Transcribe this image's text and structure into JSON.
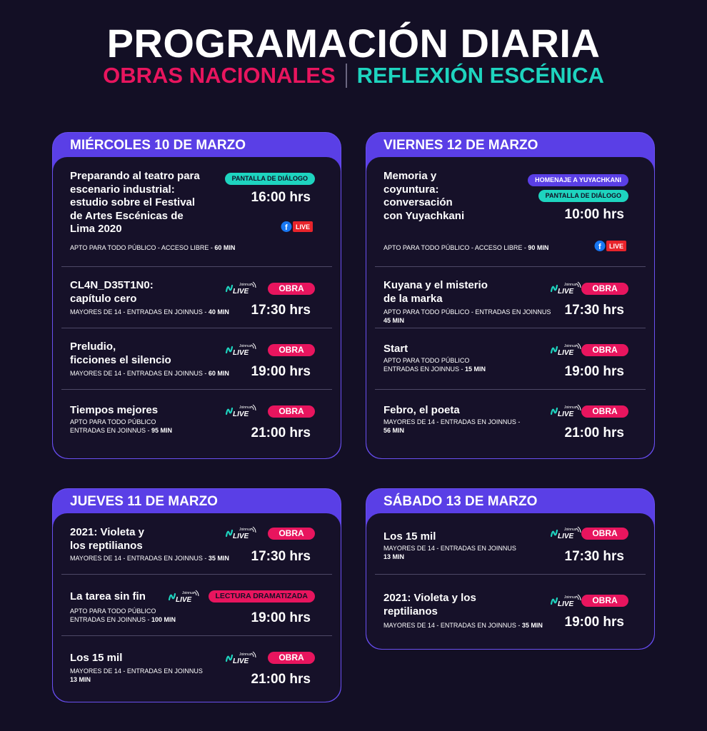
{
  "header": {
    "title": "PROGRAMACIÓN DIARIA",
    "subtitle_left": "OBRAS NACIONALES",
    "subtitle_right": "REFLEXIÓN ESCÉNICA"
  },
  "colors": {
    "background": "#130f25",
    "accent_purple": "#5a3fe6",
    "accent_pink": "#e8155e",
    "accent_teal": "#1ed4bf"
  },
  "icons": [
    "joinnus-live-logo",
    "facebook-live-icon"
  ],
  "days": {
    "wed": {
      "label": "MIÉRCOLES 10 DE MARZO",
      "events": [
        {
          "title": "Preparando al teatro para\nescenario industrial:\nestudio sobre el Festival\nde Artes Escénicas de\nLima 2020",
          "tag": "PANTALLA DE DIÁLOGO",
          "time": "16:00 hrs",
          "info": "APTO PARA TODO PÚBLICO - ACCESO LIBRE - ",
          "duration": "60 MIN",
          "platform": "LIVE"
        },
        {
          "title": "CL4N_D35T1N0:\ncapítulo cero",
          "tag": "OBRA",
          "time": "17:30 hrs",
          "info": "MAYORES DE 14 - ENTRADAS EN JOINNUS - ",
          "duration": "40 MIN",
          "platform": "Joinnus LIVE"
        },
        {
          "title": "Preludio,\nficciones el silencio",
          "tag": "OBRA",
          "time": "19:00 hrs",
          "info": "MAYORES DE 14 - ENTRADAS EN JOINNUS - ",
          "duration": "60 MIN",
          "platform": "Joinnus LIVE"
        },
        {
          "title": "Tiempos mejores",
          "tag": "OBRA",
          "time": "21:00 hrs",
          "info": "APTO PARA TODO PÚBLICO\nENTRADAS EN JOINNUS - ",
          "duration": "95 MIN",
          "platform": "Joinnus LIVE"
        }
      ]
    },
    "thu": {
      "label": "JUEVES 11 DE MARZO",
      "events": [
        {
          "title": "2021: Violeta y\nlos reptilianos",
          "tag": "OBRA",
          "time": "17:30 hrs",
          "info": "MAYORES DE 14 - ENTRADAS EN JOINNUS - ",
          "duration": "35 MIN",
          "platform": "Joinnus LIVE"
        },
        {
          "title": "La tarea sin fin",
          "tag": "LECTURA DRAMATIZADA",
          "time": "19:00 hrs",
          "info": "APTO PARA TODO PÚBLICO\nENTRADAS EN JOINNUS - ",
          "duration": "100 MIN",
          "platform": "Joinnus LIVE"
        },
        {
          "title": "Los 15 mil",
          "tag": "OBRA",
          "time": "21:00 hrs",
          "info": "MAYORES DE 14 - ENTRADAS EN JOINNUS\n",
          "duration": "13 MIN",
          "platform": "Joinnus LIVE"
        }
      ]
    },
    "fri": {
      "label": "VIERNES 12 DE MARZO",
      "events": [
        {
          "title": "Memoria y\ncoyuntura:\nconversación\ncon Yuyachkani",
          "tag": "HOMENAJE A YUYACHKANI",
          "tag2": "PANTALLA DE DIÁLOGO",
          "time": "10:00 hrs",
          "info": "APTO PARA TODO PÚBLICO - ACCESO LIBRE - ",
          "duration": "90 MIN",
          "platform": "LIVE"
        },
        {
          "title": "Kuyana y el misterio\nde la marka",
          "tag": "OBRA",
          "time": "17:30 hrs",
          "info": "APTO PARA TODO PÚBLICO - ENTRADAS EN JOINNUS\n",
          "duration": "45 MIN",
          "platform": "Joinnus LIVE"
        },
        {
          "title": "Start",
          "tag": "OBRA",
          "time": "19:00 hrs",
          "info": "APTO PARA TODO PÚBLICO\nENTRADAS EN JOINNUS - ",
          "duration": "15 MIN",
          "platform": "Joinnus LIVE"
        },
        {
          "title": "Febro, el poeta",
          "tag": "OBRA",
          "time": "21:00 hrs",
          "info": "MAYORES DE 14 - ENTRADAS EN JOINNUS -\n",
          "duration": "56 MIN",
          "platform": "Joinnus LIVE"
        }
      ]
    },
    "sat": {
      "label": "SÁBADO 13 DE MARZO",
      "events": [
        {
          "title": "Los 15 mil",
          "tag": "OBRA",
          "time": "17:30 hrs",
          "info": "MAYORES DE 14 - ENTRADAS EN JOINNUS\n",
          "duration": "13 MIN",
          "platform": "Joinnus LIVE"
        },
        {
          "title": "2021: Violeta y los\nreptilianos",
          "tag": "OBRA",
          "time": "19:00 hrs",
          "info": "MAYORES DE 14 - ENTRADAS EN JOINNUS - ",
          "duration": "35 MIN",
          "platform": "Joinnus LIVE"
        }
      ]
    }
  }
}
